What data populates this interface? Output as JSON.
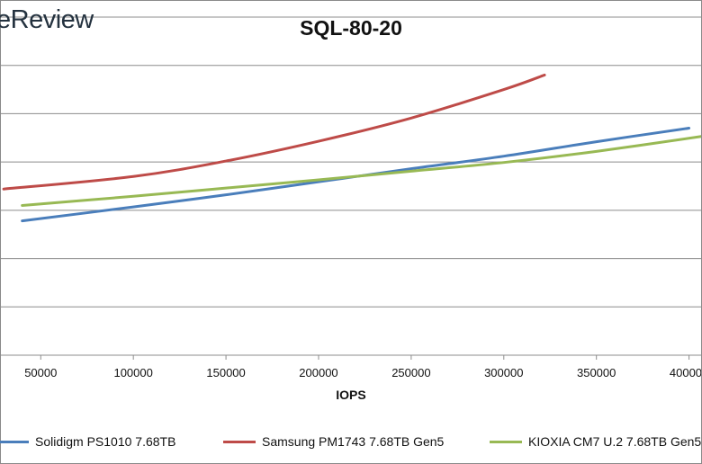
{
  "watermark": "eReview",
  "chart_data": {
    "type": "line",
    "title": "SQL-80-20",
    "xlabel": "IOPS",
    "ylabel": "",
    "xlim": [
      28000,
      407000
    ],
    "ylim": [
      0,
      7
    ],
    "x_ticks": [
      50000,
      100000,
      150000,
      200000,
      250000,
      300000,
      350000,
      400000
    ],
    "x_tick_labels": [
      "50000",
      "100000",
      "150000",
      "200000",
      "250000",
      "300000",
      "350000",
      "400000"
    ],
    "grid": "horizontal",
    "legend_position": "bottom",
    "series": [
      {
        "name": "Solidigm PS1010 7.68TB",
        "color": "#4a7ebb",
        "x": [
          40000,
          100000,
          150000,
          200000,
          250000,
          300000,
          350000,
          400000
        ],
        "y": [
          2.78,
          3.07,
          3.32,
          3.59,
          3.86,
          4.12,
          4.42,
          4.7
        ]
      },
      {
        "name": "Samsung PM1743 7.68TB Gen5",
        "color": "#be4b48",
        "x": [
          30000,
          100000,
          150000,
          200000,
          250000,
          300000,
          322000
        ],
        "y": [
          3.44,
          3.7,
          4.02,
          4.43,
          4.91,
          5.5,
          5.8
        ]
      },
      {
        "name": "KIOXIA CM7 U.2 7.68TB Gen5",
        "color": "#98b954",
        "x": [
          40000,
          100000,
          150000,
          200000,
          250000,
          300000,
          350000,
          407000
        ],
        "y": [
          3.1,
          3.29,
          3.46,
          3.63,
          3.81,
          3.99,
          4.22,
          4.53
        ]
      }
    ]
  }
}
